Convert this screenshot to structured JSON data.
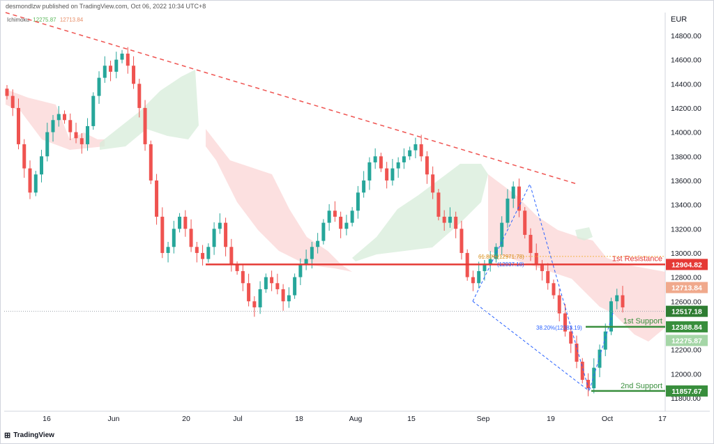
{
  "header": {
    "text": "desmondlzw published on TradingView.com, Oct 06, 2022 10:34 UTC+8"
  },
  "indicator": {
    "name": "Ichimoku",
    "value1": "12275.87",
    "value2": "12713.84"
  },
  "currency": "EUR",
  "footer": {
    "brand": "TradingView"
  },
  "colors": {
    "up": "#26a69a",
    "down": "#ef5350",
    "cloud_bull": "#d7ecd9",
    "cloud_bear": "#fbd6d6",
    "resistance": "#e53935",
    "support": "#388e3c",
    "trend": "#ef5350",
    "pattern": "#2962ff",
    "fib": "#f2b544"
  },
  "chart_data": {
    "type": "candlestick",
    "instrument_note": "EUR",
    "y_ticks": [
      "14800.00",
      "14600.00",
      "14400.00",
      "14200.00",
      "14000.00",
      "13800.00",
      "13600.00",
      "13400.00",
      "13200.00",
      "13000.00",
      "12800.00",
      "12600.00",
      "12400.00",
      "12200.00",
      "12000.00",
      "11800.00"
    ],
    "x_ticks": [
      "16",
      "Jun",
      "20",
      "Jul",
      "18",
      "Aug",
      "15",
      "Sep",
      "19",
      "Oct",
      "17"
    ],
    "ylim": [
      11690,
      14990
    ],
    "levels": [
      {
        "name": "1st Resistance",
        "value": 12904.82,
        "label": "12904.82",
        "color": "#e53935"
      },
      {
        "name": "1st Support",
        "value": 12388.84,
        "label": "12388.84",
        "color": "#388e3c"
      },
      {
        "name": "2nd Support",
        "value": 11857.67,
        "label": "11857.67",
        "color": "#388e3c"
      }
    ],
    "price_tags": [
      {
        "value": 12713.84,
        "label": "12713.84",
        "color": "#f0a98c"
      },
      {
        "value": 12517.18,
        "label": "12517.18",
        "color": "#2e7d32"
      },
      {
        "value": 12275.87,
        "label": "12275.87",
        "color": "#a5d6a7"
      }
    ],
    "current_price": 12517.18,
    "annotations": [
      {
        "text": "38.20%(12383.19)",
        "value": 12383.19
      },
      {
        "text": "61.80%(12971.78)",
        "value": 12971.78
      },
      {
        "text": "(12937.18)",
        "value": 12937.18
      }
    ],
    "trendline": {
      "from": {
        "x": "May 2",
        "y": 14990
      },
      "to": {
        "x": "Sep 21",
        "y": 13570
      }
    },
    "path_closes": [
      14300,
      14200,
      13900,
      13700,
      13500,
      13650,
      13800,
      14000,
      14100,
      14150,
      14100,
      14000,
      13950,
      13900,
      14050,
      14300,
      14450,
      14550,
      14500,
      14600,
      14650,
      14550,
      14400,
      14200,
      13900,
      13600,
      13300,
      13000,
      13050,
      13200,
      13300,
      13200,
      13050,
      13000,
      12950,
      13050,
      13200,
      13250,
      13050,
      12900,
      12850,
      12750,
      12600,
      12550,
      12700,
      12800,
      12750,
      12700,
      12600,
      12650,
      12800,
      12900,
      12950,
      13050,
      13100,
      13250,
      13350,
      13300,
      13200,
      13250,
      13350,
      13500,
      13600,
      13750,
      13800,
      13700,
      13600,
      13700,
      13750,
      13800,
      13850,
      13900,
      13800,
      13650,
      13500,
      13300,
      13250,
      13300,
      13200,
      13000,
      12800,
      12750,
      12850,
      12900,
      12950,
      13050,
      13250,
      13450,
      13550,
      13350,
      13150,
      13000,
      12900,
      12850,
      12750,
      12650,
      12500,
      12350,
      12250,
      12100,
      11950,
      11880,
      12050,
      12200,
      12350,
      12600,
      12650,
      12550
    ]
  }
}
